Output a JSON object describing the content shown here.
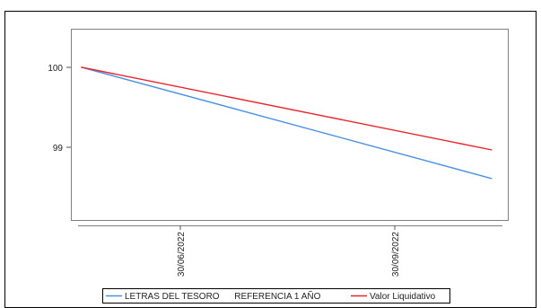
{
  "chart_data": {
    "type": "line",
    "x_tick_labels": [
      "30/06/2022",
      "30/09/2022"
    ],
    "y_tick_labels": [
      "100",
      "99"
    ],
    "y_ticks": [
      100,
      99
    ],
    "ylim": [
      98.02,
      100.49
    ],
    "xlim": [
      "2022-04-08",
      "2022-12-31"
    ],
    "x": [
      "2022-04-14",
      "2022-12-21"
    ],
    "series": [
      {
        "name": "LETRAS DEL TESORO      REFERENCIA 1 AÑO",
        "color": "#4a90e2",
        "values": [
          100,
          98.56
        ]
      },
      {
        "name": "Valor Liquidativo",
        "color": "#e8232a",
        "values": [
          100,
          98.93
        ]
      }
    ],
    "grid": false,
    "legend_position": "bottom"
  }
}
